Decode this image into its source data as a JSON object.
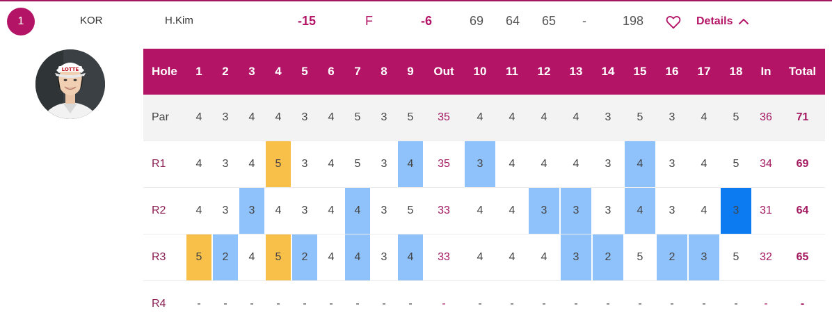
{
  "player": {
    "position": "1",
    "country": "KOR",
    "name": "H.Kim",
    "to_par": "-15",
    "thru": "F",
    "today": "-6",
    "rounds": [
      "69",
      "64",
      "65",
      "-"
    ],
    "total": "198",
    "details_label": "Details"
  },
  "colors": {
    "brand": "#b31466",
    "bogey": "#f8c049",
    "birdie": "#8fc1fa",
    "eagle": "#0c7bf2"
  },
  "scorecard": {
    "headers": [
      "Hole",
      "1",
      "2",
      "3",
      "4",
      "5",
      "6",
      "7",
      "8",
      "9",
      "Out",
      "10",
      "11",
      "12",
      "13",
      "14",
      "15",
      "16",
      "17",
      "18",
      "In",
      "Total"
    ],
    "rows": [
      {
        "label": "Par",
        "cells": [
          "4",
          "3",
          "4",
          "4",
          "3",
          "4",
          "5",
          "3",
          "5",
          "35",
          "4",
          "4",
          "4",
          "4",
          "3",
          "5",
          "3",
          "4",
          "5",
          "36",
          "71"
        ],
        "marks": [
          "",
          "",
          "",
          "",
          "",
          "",
          "",
          "",
          "",
          "",
          "",
          "",
          "",
          "",
          "",
          "",
          "",
          "",
          "",
          "",
          ""
        ]
      },
      {
        "label": "R1",
        "cells": [
          "4",
          "3",
          "4",
          "5",
          "3",
          "4",
          "5",
          "3",
          "4",
          "35",
          "3",
          "4",
          "4",
          "4",
          "3",
          "4",
          "3",
          "4",
          "5",
          "34",
          "69"
        ],
        "marks": [
          "",
          "",
          "",
          "bogey",
          "",
          "",
          "",
          "",
          "birdie",
          "",
          "birdie",
          "",
          "",
          "",
          "",
          "birdie",
          "",
          "",
          "",
          "",
          ""
        ]
      },
      {
        "label": "R2",
        "cells": [
          "4",
          "3",
          "3",
          "4",
          "3",
          "4",
          "4",
          "3",
          "5",
          "33",
          "4",
          "4",
          "3",
          "3",
          "3",
          "4",
          "3",
          "4",
          "3",
          "31",
          "64"
        ],
        "marks": [
          "",
          "",
          "birdie",
          "",
          "",
          "",
          "birdie",
          "",
          "",
          "",
          "",
          "",
          "birdie",
          "birdie",
          "",
          "birdie",
          "",
          "",
          "eagle",
          "",
          ""
        ]
      },
      {
        "label": "R3",
        "cells": [
          "5",
          "2",
          "4",
          "5",
          "2",
          "4",
          "4",
          "3",
          "4",
          "33",
          "4",
          "4",
          "4",
          "3",
          "2",
          "5",
          "2",
          "3",
          "5",
          "32",
          "65"
        ],
        "marks": [
          "bogey",
          "birdie",
          "",
          "bogey",
          "birdie",
          "",
          "birdie",
          "",
          "birdie",
          "",
          "",
          "",
          "",
          "birdie",
          "birdie",
          "",
          "birdie",
          "birdie",
          "",
          "",
          ""
        ]
      },
      {
        "label": "R4",
        "cells": [
          "-",
          "-",
          "-",
          "-",
          "-",
          "-",
          "-",
          "-",
          "-",
          "-",
          "-",
          "-",
          "-",
          "-",
          "-",
          "-",
          "-",
          "-",
          "-",
          "-",
          "-"
        ],
        "marks": [
          "",
          "",
          "",
          "",
          "",
          "",
          "",
          "",
          "",
          "",
          "",
          "",
          "",
          "",
          "",
          "",
          "",
          "",
          "",
          "",
          ""
        ]
      }
    ]
  }
}
